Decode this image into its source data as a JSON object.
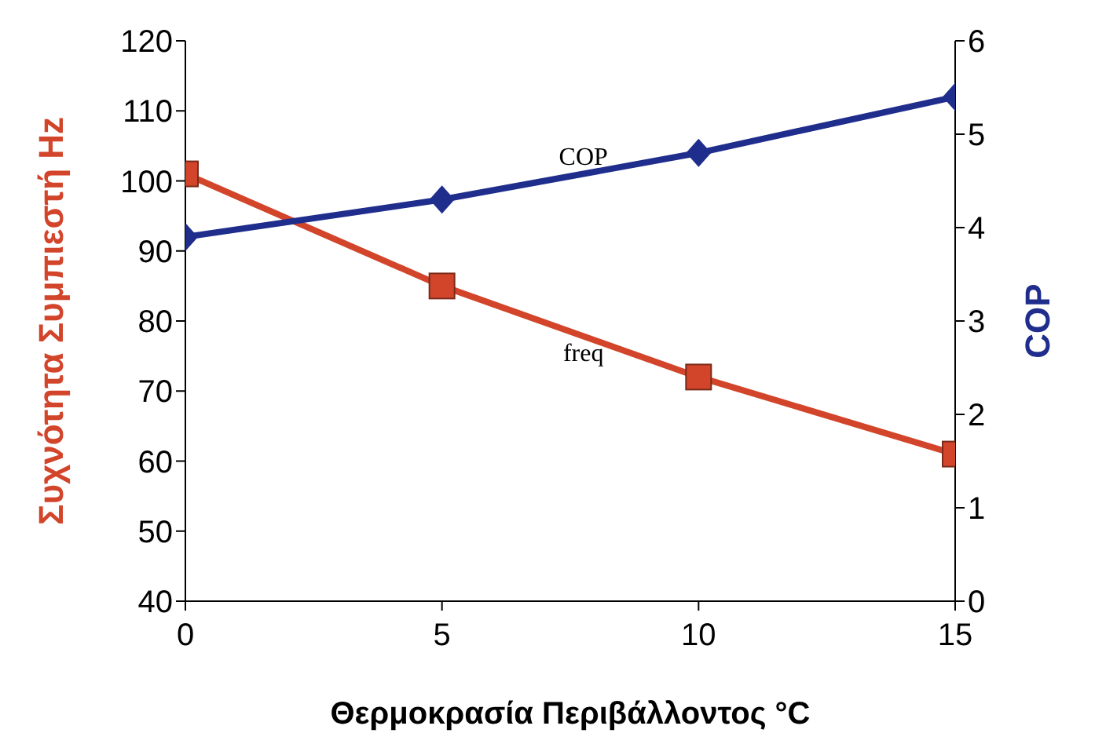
{
  "chart_data": {
    "type": "line",
    "xlabel": "Θερμοκρασία Περιβάλλοντος °C",
    "ylabel": "Συχνότητα Συμπιεστή Hz",
    "y2label": "COP",
    "x": [
      0,
      5,
      10,
      15
    ],
    "series": [
      {
        "name": "freq",
        "color": "#d2452b",
        "values": [
          101,
          85,
          72,
          61
        ],
        "marker": "square"
      },
      {
        "name": "COP",
        "color": "#1f2d8c",
        "values": [
          3.9,
          4.3,
          4.8,
          5.4
        ],
        "axis": "y2",
        "marker": "diamond"
      }
    ],
    "xlim": [
      0,
      15
    ],
    "xticks": [
      0,
      5,
      10,
      15
    ],
    "ylim": [
      40,
      120
    ],
    "yticks": [
      40,
      50,
      60,
      70,
      80,
      90,
      100,
      110,
      120
    ],
    "y2lim": [
      0,
      6
    ],
    "y2ticks": [
      0,
      1,
      2,
      3,
      4,
      5,
      6
    ],
    "grid": false,
    "legend": false,
    "line_style": "solid"
  }
}
